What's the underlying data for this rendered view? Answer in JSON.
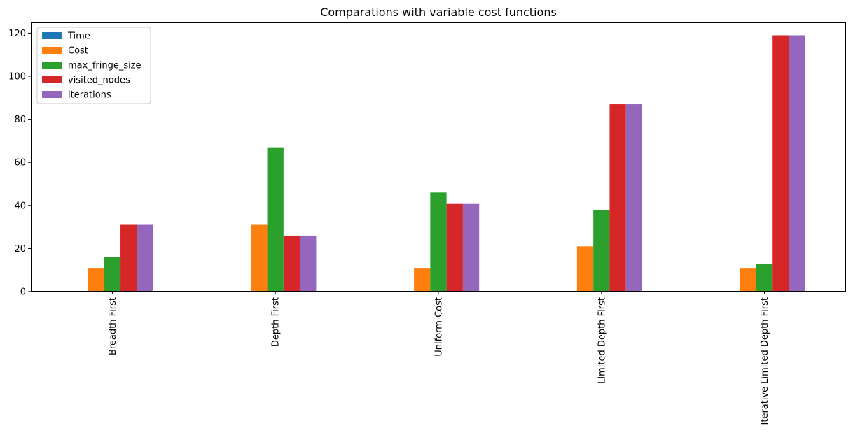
{
  "chart_data": {
    "type": "bar",
    "title": "Comparations with variable cost functions",
    "xlabel": "",
    "ylabel": "",
    "categories": [
      "Breadth First",
      "Depth First",
      "Uniform Cost",
      "Limited Depth First",
      "Iterative Limited Depth First"
    ],
    "series": [
      {
        "name": "Time",
        "color": "#1f77b4",
        "values": [
          0.001,
          0.001,
          0.001,
          0.001,
          0.002
        ]
      },
      {
        "name": "Cost",
        "color": "#ff7f0e",
        "values": [
          11,
          31,
          11,
          21,
          11
        ]
      },
      {
        "name": "max_fringe_size",
        "color": "#2ca02c",
        "values": [
          16,
          67,
          46,
          38,
          13
        ]
      },
      {
        "name": "visited_nodes",
        "color": "#d62728",
        "values": [
          31,
          26,
          41,
          87,
          119
        ]
      },
      {
        "name": "iterations",
        "color": "#9467bd",
        "values": [
          31,
          26,
          41,
          87,
          119
        ]
      }
    ],
    "ylim": [
      0,
      125
    ],
    "yticks": [
      0,
      20,
      40,
      60,
      80,
      100,
      120
    ],
    "grid": false,
    "legend_position": "top-left"
  }
}
